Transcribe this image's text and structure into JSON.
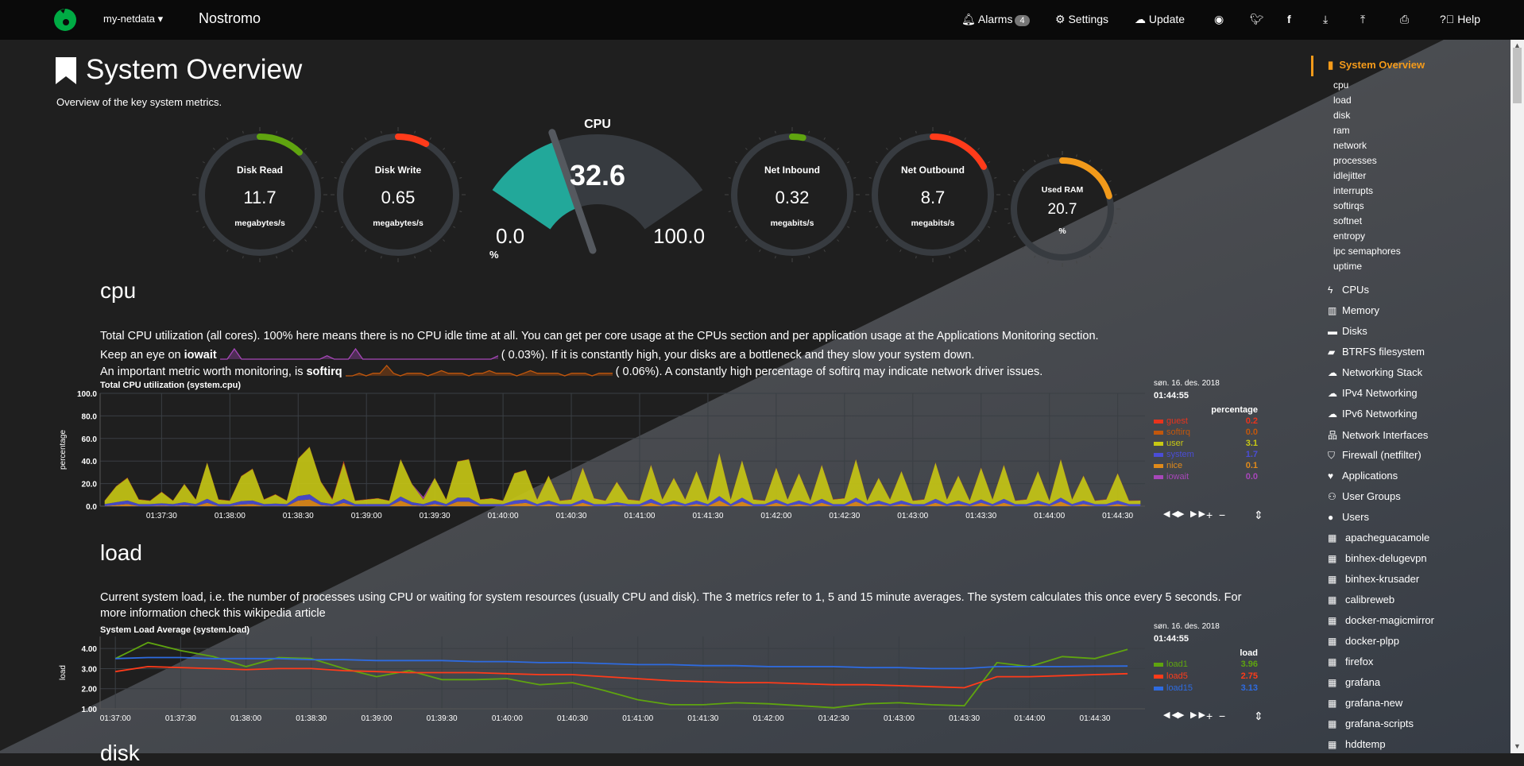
{
  "header": {
    "brand": "my-netdata",
    "host": "Nostromo",
    "alarms_label": "Alarms",
    "alarms_count": "4",
    "settings_label": "Settings",
    "update_label": "Update",
    "help_label": "Help",
    "icons": [
      "bell-icon",
      "gear-icon",
      "cloud-upload-icon",
      "github-icon",
      "twitter-icon",
      "facebook-icon",
      "download-icon",
      "upload-icon",
      "print-icon",
      "help-icon"
    ],
    "logo_color": "#00ab44"
  },
  "page": {
    "title": "System Overview",
    "subtitle": "Overview of the key system metrics."
  },
  "gauges": [
    {
      "title": "Disk Read",
      "value": "11.7",
      "unit": "megabytes/s",
      "fraction": 0.12,
      "color": "#5fa40f"
    },
    {
      "title": "Disk Write",
      "value": "0.65",
      "unit": "megabytes/s",
      "fraction": 0.08,
      "color": "#ff3b1a"
    },
    {
      "title": "Net Inbound",
      "value": "0.32",
      "unit": "megabits/s",
      "fraction": 0.03,
      "color": "#5fa40f"
    },
    {
      "title": "Net Outbound",
      "value": "8.7",
      "unit": "megabits/s",
      "fraction": 0.17,
      "color": "#ff3b1a"
    },
    {
      "title": "Used RAM",
      "value": "20.7",
      "unit": "%",
      "fraction": 0.207,
      "color": "#f29a1a"
    }
  ],
  "cpu_gauge": {
    "title": "CPU",
    "value": "32.6",
    "min": "0.0",
    "max": "100.0",
    "unit": "%",
    "percent": 32.6,
    "color": "#22a89a"
  },
  "cpu_section": {
    "heading": "cpu",
    "line1": "Total CPU utilization (all cores). 100% here means there is no CPU idle time at all. You can get per core usage at the CPUs section and per application usage at the Applications Monitoring section.",
    "line2_pre": "Keep an eye on ",
    "line2_bold": "iowait",
    "line2_val": "(      0.03%). If it is constantly high, your disks are a bottleneck and they slow your system down.",
    "line3_pre": "An important metric worth monitoring, is ",
    "line3_bold": "softirq",
    "line3_val": "(      0.06%). A constantly high percentage of softirq may indicate network driver issues.",
    "iowait_spark": [
      0,
      0,
      3,
      0,
      0,
      0,
      0,
      0,
      0,
      0,
      0,
      0,
      0,
      0,
      0,
      1,
      0,
      0,
      0,
      3,
      0,
      0,
      0,
      0,
      0,
      0,
      0,
      0,
      0,
      0,
      0,
      0,
      0,
      0,
      0,
      0,
      0,
      0,
      0,
      1
    ],
    "softirq_spark": [
      0,
      0,
      1,
      0,
      1,
      1,
      4,
      1,
      0,
      1,
      1,
      1,
      0,
      1,
      2,
      1,
      1,
      1,
      0,
      1,
      1,
      2,
      1,
      1,
      1,
      0,
      1,
      2,
      1,
      1,
      1,
      1,
      0,
      1,
      1,
      1,
      0,
      1,
      1,
      1
    ]
  },
  "load_section": {
    "heading": "load",
    "text": "Current system load, i.e. the number of processes using CPU or waiting for system resources (usually CPU and disk). The 3 metrics refer to 1, 5 and 15 minute averages. The system calculates this once every 5 seconds. For more information check this wikipedia article"
  },
  "next_section": {
    "heading": "disk"
  },
  "chart_data": [
    {
      "type": "area",
      "title": "Total CPU utilization (system.cpu)",
      "ylabel": "percentage",
      "ylim": [
        0,
        100
      ],
      "yticks": [
        "0.0",
        "20.0",
        "40.0",
        "60.0",
        "80.0",
        "100.0"
      ],
      "xticks": [
        "01:37:30",
        "01:38:00",
        "01:38:30",
        "01:39:00",
        "01:39:30",
        "01:40:00",
        "01:40:30",
        "01:41:00",
        "01:41:30",
        "01:42:00",
        "01:42:30",
        "01:43:00",
        "01:43:30",
        "01:44:00",
        "01:44:30"
      ],
      "xrange": [
        "01:37:03",
        "01:44:42"
      ],
      "x_start": "01:37:05",
      "x_step_seconds": 5,
      "stacked": true,
      "grid": true,
      "legend": {
        "date": "søn. 16. des. 2018",
        "time": "01:44:55",
        "units": "percentage"
      },
      "series": [
        {
          "name": "guest",
          "color": "#e8331c",
          "last": "0.2",
          "values": [
            0.2,
            0.2,
            0.3,
            0.2,
            0.2,
            0.2,
            0.2,
            0.2,
            0.2,
            0.2,
            0.2,
            0.2,
            0.2,
            0.3,
            0.2,
            0.2,
            0.2,
            0.2,
            0.2,
            0.2,
            0.8,
            1.5,
            0.2,
            0.2,
            0.2,
            0.2,
            0.2,
            0.2,
            0.2,
            0.2,
            0.2,
            0.2,
            0.2,
            0.2,
            0.2,
            0.2,
            0.2,
            0.2,
            0.2,
            0.2,
            0.2,
            0.2,
            0.2,
            0.2,
            0.2,
            0.2,
            0.2,
            0.2,
            0.2,
            0.2,
            0.2,
            0.2,
            0.2,
            0.2,
            0.2,
            0.2,
            0.2,
            0.2,
            0.2,
            0.2,
            0.2,
            0.2,
            0.2,
            0.2,
            0.2,
            0.2,
            0.2,
            0.2,
            0.2,
            0.2,
            0.2,
            0.2,
            0.2,
            0.2,
            0.2,
            0.2,
            0.2,
            0.2,
            0.2,
            0.2,
            0.2,
            0.2,
            0.2,
            0.2,
            0.2,
            0.2,
            0.2,
            0.2,
            0.2,
            0.2,
            0.2,
            0.2
          ]
        },
        {
          "name": "softirq",
          "color": "#c2570c",
          "last": "0.0",
          "values": [
            0.1,
            0.1,
            0.1,
            0.1,
            0.1,
            0.1,
            0.1,
            0.1,
            0.1,
            0.1,
            0.1,
            0.1,
            0.1,
            0.1,
            0.1,
            0.1,
            0.1,
            0.1,
            0.1,
            0.1,
            0.1,
            0.1,
            0.1,
            0.1,
            0.1,
            0.1,
            0.1,
            0.1,
            0.1,
            0.1,
            0.1,
            0.1,
            0.1,
            0.1,
            0.1,
            0.1,
            0.1,
            0.1,
            0.1,
            0.1,
            0.1,
            0.1,
            0.1,
            0.1,
            0.1,
            0.1,
            0.1,
            0.1,
            0.1,
            0.1,
            0.1,
            0.1,
            0.1,
            0.1,
            0.1,
            0.1,
            0.1,
            0.1,
            0.1,
            0.1,
            0.1,
            0.1,
            0.1,
            0.1,
            0.1,
            0.1,
            0.1,
            0.1,
            0.1,
            0.1,
            0.1,
            0.1,
            0.1,
            0.1,
            0.1,
            0.1,
            0.1,
            0.1,
            0.1,
            0.1,
            0.1,
            0.1,
            0.1,
            0.1,
            0.1,
            0.1,
            0.1,
            0.1,
            0.1,
            0.1,
            0.1,
            0.0
          ]
        },
        {
          "name": "user",
          "color": "#c8c814",
          "last": "3.1",
          "values": [
            3,
            14,
            20,
            4,
            3,
            10,
            3,
            16,
            4,
            32,
            4,
            3,
            22,
            28,
            4,
            8,
            3,
            33,
            42,
            18,
            4,
            32,
            3,
            4,
            5,
            3,
            33,
            16,
            4,
            20,
            4,
            32,
            34,
            4,
            5,
            3,
            24,
            26,
            4,
            22,
            3,
            4,
            28,
            5,
            3,
            18,
            4,
            3,
            30,
            4,
            20,
            4,
            26,
            3,
            38,
            4,
            33,
            4,
            3,
            28,
            4,
            24,
            3,
            30,
            4,
            5,
            34,
            3,
            20,
            4,
            26,
            3,
            4,
            32,
            4,
            22,
            3,
            28,
            4,
            30,
            3,
            4,
            26,
            3,
            34,
            4,
            22,
            3,
            4,
            24,
            3,
            3.1
          ]
        },
        {
          "name": "system",
          "color": "#4a4dd6",
          "last": "1.7",
          "values": [
            1.7,
            2.5,
            3,
            1.7,
            1.7,
            2,
            1.7,
            2.5,
            1.7,
            3.5,
            1.7,
            1.7,
            3,
            3,
            1.7,
            2,
            1.7,
            4,
            4.5,
            2.5,
            1.7,
            3.5,
            1.7,
            1.7,
            1.7,
            1.7,
            3.5,
            2.5,
            1.7,
            3,
            1.7,
            3.5,
            3.5,
            1.7,
            1.7,
            1.7,
            3,
            3,
            1.7,
            3,
            1.7,
            1.7,
            3,
            1.7,
            1.7,
            2.5,
            1.7,
            1.7,
            3.5,
            1.7,
            3,
            1.7,
            3,
            1.7,
            4,
            1.7,
            3.5,
            1.7,
            1.7,
            3,
            1.7,
            3,
            1.7,
            3.5,
            1.7,
            1.7,
            3.5,
            1.7,
            3,
            1.7,
            3,
            1.7,
            1.7,
            3.5,
            1.7,
            3,
            1.7,
            3,
            1.7,
            3.5,
            1.7,
            1.7,
            3,
            1.7,
            3.5,
            1.7,
            3,
            1.7,
            1.7,
            3,
            1.7,
            1.7
          ]
        },
        {
          "name": "nice",
          "color": "#e08a1a",
          "last": "0.1",
          "values": [
            0.1,
            1,
            2,
            0.1,
            0.1,
            0.5,
            0.1,
            1,
            0.1,
            3,
            0.1,
            0.1,
            1.5,
            2,
            0.1,
            0.3,
            0.1,
            5,
            6,
            1,
            0.1,
            3,
            0.1,
            0.1,
            0.1,
            0.1,
            5,
            1,
            0.1,
            2,
            0.1,
            4,
            4,
            0.1,
            0.1,
            0.1,
            2,
            3,
            0.1,
            2,
            0.1,
            0.1,
            3,
            0.1,
            0.1,
            1,
            0.1,
            0.1,
            3,
            0.1,
            2,
            0.1,
            2,
            0.1,
            5,
            0.1,
            4,
            0.1,
            0.1,
            3,
            0.1,
            2,
            0.1,
            3,
            0.1,
            0.1,
            4,
            0.1,
            2,
            0.1,
            2,
            0.1,
            0.1,
            3,
            0.1,
            2,
            0.1,
            3,
            0.1,
            3,
            0.1,
            0.1,
            2,
            0.1,
            4,
            0.1,
            2,
            0.1,
            0.1,
            2,
            0.1,
            0.1
          ]
        },
        {
          "name": "iowait",
          "color": "#a747b9",
          "last": "0.0",
          "values": [
            0,
            0,
            0,
            0,
            0,
            0,
            0,
            0,
            0,
            0,
            0,
            0,
            0,
            0,
            0,
            0,
            0,
            0,
            0,
            0,
            0,
            0,
            0,
            0,
            0,
            0,
            0,
            0,
            2,
            0,
            0,
            0,
            0,
            0,
            0,
            0,
            0,
            0,
            0,
            0,
            0,
            0,
            0,
            0,
            0,
            0,
            0,
            0,
            0,
            0,
            0,
            0,
            0,
            0,
            0,
            0,
            0,
            0,
            0,
            0,
            0,
            0,
            0,
            0,
            0,
            0,
            0,
            0,
            0,
            0,
            0,
            0,
            0,
            0,
            0,
            0,
            0,
            0,
            0,
            0,
            0,
            0,
            0,
            0,
            0,
            0,
            0,
            0,
            0,
            0,
            0,
            0
          ]
        }
      ]
    },
    {
      "type": "line",
      "title": "System Load Average (system.load)",
      "ylabel": "load",
      "ylim": [
        1,
        4.6
      ],
      "yticks": [
        "1.00",
        "2.00",
        "3.00",
        "4.00"
      ],
      "xticks": [
        "01:37:00",
        "01:37:30",
        "01:38:00",
        "01:38:30",
        "01:39:00",
        "01:39:30",
        "01:40:00",
        "01:40:30",
        "01:41:00",
        "01:41:30",
        "01:42:00",
        "01:42:30",
        "01:43:00",
        "01:43:30",
        "01:44:00",
        "01:44:30"
      ],
      "xrange": [
        "01:36:53",
        "01:44:53"
      ],
      "x_start": "01:37:00",
      "x_step_seconds": 15,
      "grid": true,
      "legend": {
        "date": "søn. 16. des. 2018",
        "time": "01:44:55",
        "units": "load"
      },
      "series": [
        {
          "name": "load1",
          "color": "#5fa40f",
          "last": "3.96",
          "values": [
            3.5,
            4.3,
            3.9,
            3.6,
            3.1,
            3.55,
            3.5,
            3.0,
            2.6,
            2.9,
            2.45,
            2.45,
            2.5,
            2.2,
            2.3,
            1.9,
            1.45,
            1.2,
            1.2,
            1.3,
            1.25,
            1.15,
            1.05,
            1.25,
            1.3,
            1.2,
            1.15,
            3.3,
            3.1,
            3.6,
            3.5,
            3.96
          ]
        },
        {
          "name": "load5",
          "color": "#ff3b1a",
          "last": "2.75",
          "values": [
            2.85,
            3.1,
            3.05,
            3.0,
            2.95,
            3.0,
            3.0,
            2.9,
            2.85,
            2.8,
            2.8,
            2.8,
            2.75,
            2.7,
            2.7,
            2.6,
            2.5,
            2.4,
            2.35,
            2.3,
            2.3,
            2.25,
            2.2,
            2.2,
            2.15,
            2.1,
            2.05,
            2.6,
            2.6,
            2.65,
            2.7,
            2.75
          ]
        },
        {
          "name": "load15",
          "color": "#2e6be0",
          "last": "3.13",
          "values": [
            3.5,
            3.55,
            3.55,
            3.5,
            3.5,
            3.5,
            3.45,
            3.45,
            3.4,
            3.4,
            3.4,
            3.35,
            3.35,
            3.3,
            3.3,
            3.25,
            3.2,
            3.2,
            3.15,
            3.15,
            3.1,
            3.1,
            3.1,
            3.05,
            3.05,
            3.0,
            3.0,
            3.1,
            3.1,
            3.1,
            3.12,
            3.13
          ]
        }
      ]
    }
  ],
  "chart_controls": {
    "icons": [
      "rewind-icon",
      "play-icon",
      "fast-forward-icon",
      "zoom-in-icon",
      "zoom-out-icon",
      "resize-icon"
    ],
    "labels": [
      "◀◀",
      "▶",
      "▶▶",
      "+",
      "−",
      "⇕"
    ]
  },
  "sidebar": {
    "active": "System Overview",
    "accent": "#f59b1a",
    "sub_items": [
      "cpu",
      "load",
      "disk",
      "ram",
      "network",
      "processes",
      "idlejitter",
      "interrupts",
      "softirqs",
      "softnet",
      "entropy",
      "ipc semaphores",
      "uptime"
    ],
    "items": [
      {
        "label": "CPUs",
        "icon": "bolt-icon",
        "glyph": "ϟ"
      },
      {
        "label": "Memory",
        "icon": "memory-icon",
        "glyph": "▥"
      },
      {
        "label": "Disks",
        "icon": "hdd-icon",
        "glyph": "▬"
      },
      {
        "label": "BTRFS filesystem",
        "icon": "folder-open-icon",
        "glyph": "▰"
      },
      {
        "label": "Networking Stack",
        "icon": "cloud-icon",
        "glyph": "☁"
      },
      {
        "label": "IPv4 Networking",
        "icon": "cloud-icon",
        "glyph": "☁"
      },
      {
        "label": "IPv6 Networking",
        "icon": "cloud-icon",
        "glyph": "☁"
      },
      {
        "label": "Network Interfaces",
        "icon": "sitemap-icon",
        "glyph": "品"
      },
      {
        "label": "Firewall (netfilter)",
        "icon": "shield-icon",
        "glyph": "⛉"
      },
      {
        "label": "Applications",
        "icon": "heartbeat-icon",
        "glyph": "♥"
      },
      {
        "label": "User Groups",
        "icon": "users-icon",
        "glyph": "⚇"
      },
      {
        "label": "Users",
        "icon": "user-icon",
        "glyph": "●"
      },
      {
        "label": "apacheguacamole",
        "icon": "th-icon",
        "glyph": "▦"
      },
      {
        "label": "binhex-delugevpn",
        "icon": "th-icon",
        "glyph": "▦"
      },
      {
        "label": "binhex-krusader",
        "icon": "th-icon",
        "glyph": "▦"
      },
      {
        "label": "calibreweb",
        "icon": "th-icon",
        "glyph": "▦"
      },
      {
        "label": "docker-magicmirror",
        "icon": "th-icon",
        "glyph": "▦"
      },
      {
        "label": "docker-plpp",
        "icon": "th-icon",
        "glyph": "▦"
      },
      {
        "label": "firefox",
        "icon": "th-icon",
        "glyph": "▦"
      },
      {
        "label": "grafana",
        "icon": "th-icon",
        "glyph": "▦"
      },
      {
        "label": "grafana-new",
        "icon": "th-icon",
        "glyph": "▦"
      },
      {
        "label": "grafana-scripts",
        "icon": "th-icon",
        "glyph": "▦"
      },
      {
        "label": "hddtemp",
        "icon": "th-icon",
        "glyph": "▦"
      }
    ]
  }
}
